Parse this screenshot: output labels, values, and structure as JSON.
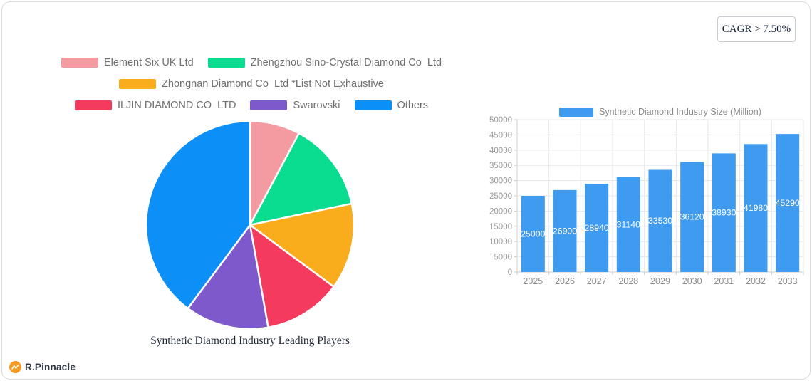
{
  "card": {
    "cagr_badge": "CAGR > 7.50%"
  },
  "brand": {
    "name": "R.Pinnacle",
    "icon": "mountain-pulse-icon",
    "circle_color": "#F59B23"
  },
  "theme": {
    "grid_color": "#E7E7E7",
    "axis_color": "#CCCCCC",
    "axis_label_color": "#999999",
    "legend_text_color": "#6F6F6F"
  },
  "chart_data": [
    {
      "type": "pie",
      "title": "Synthetic Diamond Industry Leading Players",
      "legend_position": "top",
      "legend_rows": [
        [
          0,
          1
        ],
        [
          2
        ],
        [
          3,
          4,
          5
        ]
      ],
      "start_angle_deg": 0,
      "direction": "clockwise",
      "units": "percent (estimated from slice angles; no data labels shown)",
      "slices": [
        {
          "label": "Element Six UK Ltd",
          "value": 7.8,
          "color": "#F49AA1"
        },
        {
          "label": "Zhengzhou Sino-Crystal Diamond Co  Ltd",
          "value": 13.9,
          "color": "#0ADD8F"
        },
        {
          "label": "Zhongnan Diamond Co  Ltd *List Not Exhaustive",
          "value": 13.4,
          "color": "#F9AC1C"
        },
        {
          "label": "ILJIN DIAMOND CO  LTD",
          "value": 12.1,
          "color": "#F43A5D"
        },
        {
          "label": "Swarovski",
          "value": 13.0,
          "color": "#7E59CC"
        },
        {
          "label": "Others",
          "value": 39.8,
          "color": "#0C90F8"
        }
      ]
    },
    {
      "type": "bar",
      "legend": "Synthetic Diamond Industry Size (Million)",
      "legend_position": "top",
      "categories": [
        "2025",
        "2026",
        "2027",
        "2028",
        "2029",
        "2030",
        "2031",
        "2032",
        "2033"
      ],
      "values": [
        25000,
        26900,
        28940,
        31140,
        33530,
        36120,
        38930,
        41980,
        45290
      ],
      "bar_color": "#3E9BF0",
      "value_label_color": "#FFFFFF",
      "ylim": [
        0,
        50000
      ],
      "ytick_step": 5000,
      "grid": true
    }
  ]
}
